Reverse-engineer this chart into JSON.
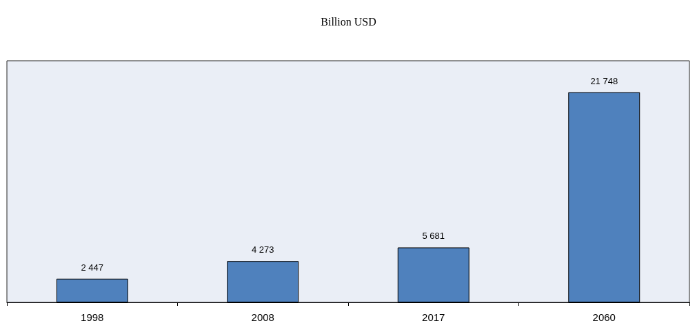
{
  "chart_data": {
    "type": "bar",
    "title": "Billion USD",
    "categories": [
      "1998",
      "2008",
      "2017",
      "2060"
    ],
    "values": [
      2447,
      4273,
      5681,
      21748
    ],
    "value_labels": [
      "2 447",
      "4 273",
      "5 681",
      "21 748"
    ],
    "color": "#4f81bd"
  }
}
